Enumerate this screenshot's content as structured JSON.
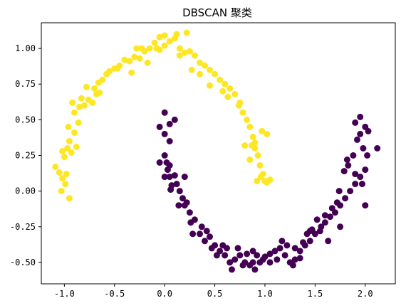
{
  "chart_data": {
    "type": "scatter",
    "title": "DBSCAN 聚类",
    "xlabel": "",
    "ylabel": "",
    "xlim": [
      -1.23,
      2.3
    ],
    "ylim": [
      -0.65,
      1.18
    ],
    "grid": false,
    "legend": "none",
    "x_ticks": [
      -1.0,
      -0.5,
      0.0,
      0.5,
      1.0,
      1.5,
      2.0
    ],
    "x_tick_labels": [
      "-1.0",
      "-0.5",
      "0.0",
      "0.5",
      "1.0",
      "1.5",
      "2.0"
    ],
    "y_ticks": [
      -0.5,
      -0.25,
      0.0,
      0.25,
      0.5,
      0.75,
      1.0
    ],
    "y_tick_labels": [
      "-0.50",
      "-0.25",
      "0.00",
      "0.25",
      "0.50",
      "0.75",
      "1.00"
    ],
    "colors": {
      "cluster_0": "#440154",
      "cluster_1": "#fde725"
    },
    "series": [
      {
        "cluster": 1,
        "color": "#fde725",
        "points": [
          [
            -1.09,
            0.17
          ],
          [
            -1.05,
            0.13
          ],
          [
            -1.02,
            0.09
          ],
          [
            -0.98,
            0.12
          ],
          [
            -1.03,
            0.0
          ],
          [
            -0.95,
            -0.05
          ],
          [
            -0.99,
            0.05
          ],
          [
            -1.0,
            0.24
          ],
          [
            -1.02,
            0.28
          ],
          [
            -0.97,
            0.3
          ],
          [
            -0.93,
            0.27
          ],
          [
            -0.88,
            0.31
          ],
          [
            -0.95,
            0.35
          ],
          [
            -0.9,
            0.41
          ],
          [
            -0.96,
            0.45
          ],
          [
            -0.86,
            0.48
          ],
          [
            -0.92,
            0.62
          ],
          [
            -0.85,
            0.59
          ],
          [
            -0.8,
            0.6
          ],
          [
            -0.76,
            0.64
          ],
          [
            -0.72,
            0.62
          ],
          [
            -0.78,
            0.73
          ],
          [
            -0.7,
            0.72
          ],
          [
            -0.66,
            0.76
          ],
          [
            -0.62,
            0.78
          ],
          [
            -0.65,
            0.69
          ],
          [
            -0.58,
            0.82
          ],
          [
            -0.55,
            0.84
          ],
          [
            -0.5,
            0.86
          ],
          [
            -0.45,
            0.88
          ],
          [
            -0.4,
            0.92
          ],
          [
            -0.35,
            0.91
          ],
          [
            -0.3,
            0.94
          ],
          [
            -0.25,
            0.93
          ],
          [
            -0.2,
            0.98
          ],
          [
            -0.15,
            1.0
          ],
          [
            -0.1,
            1.04
          ],
          [
            -0.05,
            0.99
          ],
          [
            0.0,
            1.02
          ],
          [
            0.05,
            1.05
          ],
          [
            0.1,
            1.07
          ],
          [
            0.15,
            1.0
          ],
          [
            0.2,
            0.97
          ],
          [
            0.25,
            0.98
          ],
          [
            0.3,
            0.95
          ],
          [
            0.35,
            0.9
          ],
          [
            0.4,
            0.88
          ],
          [
            0.45,
            0.85
          ],
          [
            0.5,
            0.82
          ],
          [
            0.55,
            0.78
          ],
          [
            0.6,
            0.75
          ],
          [
            0.65,
            0.72
          ],
          [
            0.7,
            0.68
          ],
          [
            0.75,
            0.62
          ],
          [
            0.78,
            0.55
          ],
          [
            0.82,
            0.5
          ],
          [
            0.85,
            0.45
          ],
          [
            0.88,
            0.38
          ],
          [
            0.9,
            0.3
          ],
          [
            0.93,
            0.25
          ],
          [
            0.95,
            0.18
          ],
          [
            0.98,
            0.12
          ],
          [
            1.0,
            0.07
          ],
          [
            0.92,
            0.07
          ],
          [
            1.02,
            0.4
          ],
          [
            0.97,
            0.42
          ],
          [
            0.85,
            0.22
          ],
          [
            0.8,
            0.32
          ],
          [
            -0.28,
            1.0
          ],
          [
            0.12,
            1.1
          ],
          [
            0.22,
            1.11
          ],
          [
            0.0,
            1.09
          ],
          [
            -0.05,
            1.08
          ],
          [
            0.27,
            0.85
          ],
          [
            0.45,
            0.74
          ],
          [
            0.63,
            0.66
          ],
          [
            0.35,
            0.82
          ],
          [
            -0.17,
            0.9
          ],
          [
            -0.23,
            1.0
          ],
          [
            -0.33,
            0.83
          ],
          [
            -0.47,
            0.86
          ],
          [
            -0.68,
            0.68
          ],
          [
            -0.83,
            0.65
          ],
          [
            -0.9,
            0.55
          ],
          [
            1.05,
            0.08
          ],
          [
            1.02,
            0.06
          ],
          [
            0.96,
            0.1
          ],
          [
            0.87,
            0.32
          ],
          [
            0.9,
            0.34
          ],
          [
            0.74,
            0.6
          ],
          [
            0.58,
            0.7
          ],
          [
            0.15,
            0.95
          ],
          [
            -0.08,
            1.0
          ]
        ]
      },
      {
        "cluster": 0,
        "color": "#440154",
        "points": [
          [
            -0.05,
            0.2
          ],
          [
            0.0,
            0.25
          ],
          [
            0.02,
            0.2
          ],
          [
            0.05,
            0.18
          ],
          [
            0.0,
            0.1
          ],
          [
            0.05,
            0.1
          ],
          [
            0.1,
            0.11
          ],
          [
            0.2,
            0.1
          ],
          [
            0.07,
            0.04
          ],
          [
            0.03,
            0.15
          ],
          [
            0.05,
            0.35
          ],
          [
            0.0,
            0.4
          ],
          [
            -0.05,
            0.45
          ],
          [
            0.0,
            0.55
          ],
          [
            0.05,
            0.47
          ],
          [
            0.1,
            0.5
          ],
          [
            0.12,
            0.05
          ],
          [
            0.15,
            0.0
          ],
          [
            0.18,
            -0.05
          ],
          [
            0.2,
            -0.1
          ],
          [
            0.25,
            -0.15
          ],
          [
            0.3,
            -0.2
          ],
          [
            0.35,
            -0.3
          ],
          [
            0.4,
            -0.35
          ],
          [
            0.45,
            -0.32
          ],
          [
            0.5,
            -0.38
          ],
          [
            0.55,
            -0.42
          ],
          [
            0.6,
            -0.45
          ],
          [
            0.65,
            -0.5
          ],
          [
            0.7,
            -0.48
          ],
          [
            0.75,
            -0.45
          ],
          [
            0.8,
            -0.5
          ],
          [
            0.85,
            -0.52
          ],
          [
            0.9,
            -0.55
          ],
          [
            0.95,
            -0.5
          ],
          [
            1.0,
            -0.46
          ],
          [
            1.05,
            -0.44
          ],
          [
            1.1,
            -0.42
          ],
          [
            1.15,
            -0.4
          ],
          [
            1.2,
            -0.45
          ],
          [
            1.25,
            -0.5
          ],
          [
            1.3,
            -0.48
          ],
          [
            1.35,
            -0.42
          ],
          [
            1.4,
            -0.38
          ],
          [
            1.45,
            -0.35
          ],
          [
            1.5,
            -0.3
          ],
          [
            1.55,
            -0.28
          ],
          [
            1.6,
            -0.22
          ],
          [
            1.65,
            -0.18
          ],
          [
            1.7,
            -0.15
          ],
          [
            1.75,
            -0.1
          ],
          [
            1.8,
            -0.05
          ],
          [
            1.85,
            0.0
          ],
          [
            1.9,
            0.05
          ],
          [
            1.95,
            0.1
          ],
          [
            2.0,
            0.15
          ],
          [
            2.02,
            0.25
          ],
          [
            1.98,
            0.3
          ],
          [
            1.95,
            0.4
          ],
          [
            2.0,
            0.45
          ],
          [
            2.03,
            0.42
          ],
          [
            1.95,
            0.52
          ],
          [
            1.9,
            0.48
          ],
          [
            2.12,
            0.3
          ],
          [
            1.92,
            0.36
          ],
          [
            1.88,
            0.25
          ],
          [
            1.82,
            0.22
          ],
          [
            1.79,
            0.14
          ],
          [
            1.74,
            0.0
          ],
          [
            1.72,
            -0.08
          ],
          [
            1.67,
            -0.12
          ],
          [
            1.6,
            -0.17
          ],
          [
            1.52,
            -0.2
          ],
          [
            1.47,
            -0.27
          ],
          [
            1.42,
            -0.3
          ],
          [
            1.38,
            -0.36
          ],
          [
            1.3,
            -0.4
          ],
          [
            1.22,
            -0.38
          ],
          [
            1.17,
            -0.35
          ],
          [
            1.12,
            -0.48
          ],
          [
            1.05,
            -0.5
          ],
          [
            0.98,
            -0.48
          ],
          [
            0.92,
            -0.45
          ],
          [
            0.88,
            -0.42
          ],
          [
            0.82,
            -0.44
          ],
          [
            0.73,
            -0.4
          ],
          [
            0.67,
            -0.55
          ],
          [
            0.62,
            -0.4
          ],
          [
            0.58,
            -0.38
          ],
          [
            0.52,
            -0.45
          ],
          [
            0.47,
            -0.4
          ],
          [
            0.42,
            -0.28
          ],
          [
            0.37,
            -0.25
          ],
          [
            0.28,
            -0.3
          ],
          [
            0.26,
            -0.22
          ],
          [
            0.22,
            -0.08
          ],
          [
            0.14,
            -0.1
          ],
          [
            0.06,
            0.01
          ],
          [
            1.45,
            -0.28
          ],
          [
            1.63,
            -0.35
          ],
          [
            1.75,
            -0.25
          ],
          [
            1.9,
            0.12
          ],
          [
            2.0,
            -0.1
          ],
          [
            1.97,
            0.05
          ],
          [
            1.83,
            0.18
          ],
          [
            1.56,
            -0.25
          ],
          [
            1.35,
            -0.47
          ],
          [
            1.28,
            -0.52
          ],
          [
            0.78,
            -0.52
          ],
          [
            0.88,
            -0.5
          ]
        ]
      }
    ]
  }
}
